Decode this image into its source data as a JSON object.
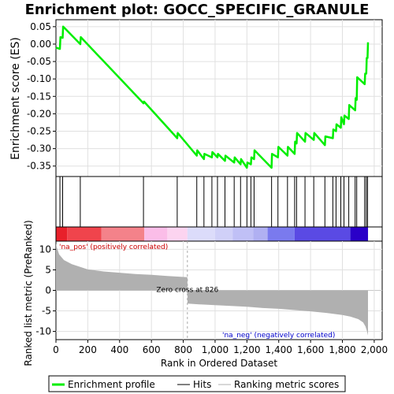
{
  "chart_data": {
    "type": "line",
    "title": "Enrichment plot: GOCC_SPECIFIC_GRANULE",
    "es_panel": {
      "ylabel": "Enrichment score (ES)",
      "ylim": [
        -0.38,
        0.07
      ],
      "yticks": [
        0.05,
        0.0,
        -0.05,
        -0.1,
        -0.15,
        -0.2,
        -0.25,
        -0.3,
        -0.35
      ],
      "ytick_labels": [
        "0.05",
        "0.00",
        "-0.05",
        "-0.10",
        "-0.15",
        "-0.20",
        "-0.25",
        "-0.30",
        "-0.35"
      ],
      "grid": true,
      "series": {
        "name": "Enrichment profile",
        "color": "#00ee00",
        "x": [
          0,
          25,
          28,
          42,
          45,
          57,
          153,
          156,
          550,
          553,
          762,
          765,
          885,
          888,
          930,
          933,
          980,
          983,
          1015,
          1018,
          1062,
          1065,
          1120,
          1123,
          1160,
          1163,
          1200,
          1203,
          1225,
          1228,
          1245,
          1248,
          1355,
          1358,
          1395,
          1398,
          1455,
          1458,
          1500,
          1503,
          1512,
          1515,
          1565,
          1568,
          1620,
          1623,
          1690,
          1693,
          1740,
          1743,
          1760,
          1763,
          1790,
          1793,
          1810,
          1813,
          1840,
          1843,
          1880,
          1883,
          1890,
          1893,
          1940,
          1943,
          1950,
          1953,
          1958,
          1961
        ],
        "y": [
          -0.01,
          -0.014,
          0.02,
          0.018,
          0.05,
          0.045,
          0.0,
          0.02,
          -0.17,
          -0.165,
          -0.27,
          -0.255,
          -0.32,
          -0.305,
          -0.33,
          -0.315,
          -0.325,
          -0.31,
          -0.325,
          -0.315,
          -0.335,
          -0.32,
          -0.34,
          -0.325,
          -0.345,
          -0.33,
          -0.355,
          -0.34,
          -0.345,
          -0.325,
          -0.33,
          -0.305,
          -0.355,
          -0.315,
          -0.325,
          -0.295,
          -0.32,
          -0.295,
          -0.315,
          -0.28,
          -0.285,
          -0.255,
          -0.28,
          -0.255,
          -0.275,
          -0.255,
          -0.29,
          -0.265,
          -0.27,
          -0.245,
          -0.25,
          -0.23,
          -0.24,
          -0.21,
          -0.23,
          -0.205,
          -0.215,
          -0.175,
          -0.19,
          -0.155,
          -0.16,
          -0.095,
          -0.115,
          -0.085,
          -0.085,
          -0.04,
          -0.04,
          0.005
        ]
      }
    },
    "hits": {
      "name": "Hits",
      "positions": [
        25,
        42,
        153,
        550,
        762,
        885,
        930,
        980,
        1015,
        1062,
        1120,
        1160,
        1200,
        1225,
        1245,
        1355,
        1395,
        1455,
        1500,
        1512,
        1565,
        1620,
        1690,
        1740,
        1760,
        1790,
        1810,
        1840,
        1880,
        1890,
        1940,
        1950,
        1958
      ]
    },
    "rank_panel": {
      "ylabel": "Ranked list metric (PreRanked)",
      "xlabel": "Rank in Ordered Dataset",
      "ylim": [
        -12,
        12
      ],
      "yticks": [
        10,
        5,
        0,
        -5,
        -10
      ],
      "ytick_labels": [
        "10",
        "5",
        "0",
        "-5",
        "-10"
      ],
      "xlim": [
        0,
        2050
      ],
      "xticks": [
        0,
        200,
        400,
        600,
        800,
        1000,
        1200,
        1400,
        1600,
        1800,
        2000
      ],
      "xtick_labels": [
        "0",
        "200",
        "400",
        "600",
        "800",
        "1,000",
        "1,200",
        "1,400",
        "1,600",
        "1,800",
        "2,000"
      ],
      "n_genes": 1961,
      "zero_cross": 826,
      "zero_cross_label": "Zero cross at 826",
      "pos_label": "'na_pos' (positively correlated)",
      "neg_label": "'na_neg' (negatively correlated)",
      "fill_color": "#b0b0b0",
      "metric": {
        "x": [
          0,
          5,
          20,
          50,
          100,
          200,
          300,
          400,
          500,
          600,
          700,
          826,
          827,
          900,
          1000,
          1100,
          1200,
          1300,
          1400,
          1500,
          1600,
          1700,
          1800,
          1850,
          1900,
          1930,
          1945,
          1955,
          1961
        ],
        "y": [
          11.5,
          10.5,
          8.8,
          7.4,
          6.4,
          5.1,
          4.6,
          4.3,
          4.0,
          3.8,
          3.5,
          3.2,
          -3.2,
          -3.4,
          -3.6,
          -3.8,
          -4.0,
          -4.3,
          -4.5,
          -4.8,
          -5.1,
          -5.5,
          -6.0,
          -6.4,
          -7.0,
          -7.8,
          -8.8,
          -10.0,
          -11.0
        ]
      }
    },
    "color_bar": {
      "segments": [
        {
          "from": 0,
          "to": 70,
          "color": "#e8202a"
        },
        {
          "from": 70,
          "to": 285,
          "color": "#f0444c"
        },
        {
          "from": 285,
          "to": 555,
          "color": "#f4828a"
        },
        {
          "from": 555,
          "to": 700,
          "color": "#fbbde8"
        },
        {
          "from": 700,
          "to": 826,
          "color": "#fcd4f0"
        },
        {
          "from": 826,
          "to": 1000,
          "color": "#dcdcfa"
        },
        {
          "from": 1000,
          "to": 1110,
          "color": "#d0d0f8"
        },
        {
          "from": 1110,
          "to": 1240,
          "color": "#c0c0f6"
        },
        {
          "from": 1240,
          "to": 1330,
          "color": "#b0b0f2"
        },
        {
          "from": 1330,
          "to": 1500,
          "color": "#7a7aee"
        },
        {
          "from": 1500,
          "to": 1850,
          "color": "#5a4ae4"
        },
        {
          "from": 1850,
          "to": 1961,
          "color": "#2a00c8"
        }
      ]
    },
    "legend": {
      "items": [
        {
          "label": "Enrichment profile",
          "color": "#00ee00",
          "kind": "thick-line"
        },
        {
          "label": "Hits",
          "color": "#000000",
          "kind": "thin-line"
        },
        {
          "label": "Ranking metric scores",
          "color": "#b0b0b0",
          "kind": "thin-line"
        }
      ]
    }
  }
}
